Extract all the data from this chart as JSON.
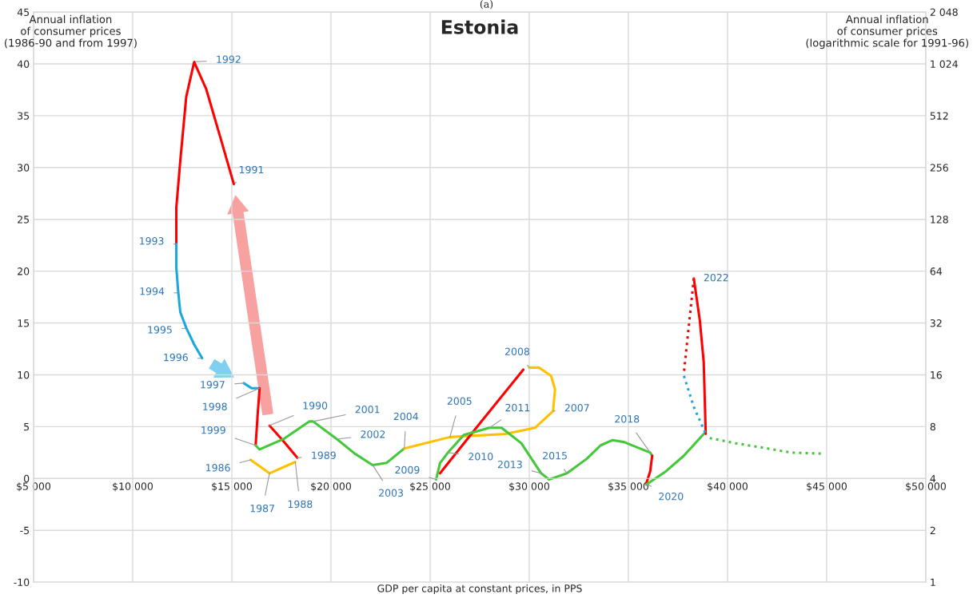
{
  "chart_data": {
    "type": "line",
    "title": "Estonia",
    "xlabel": "GDP per capita at constant prices, in PPS",
    "ylabel": "Annual inflation\nof consumer prices\n(1986-90 and from 1997)",
    "y2label": "Annual inflation\nof consumer prices\n(logarithmic scale for 1991-96)",
    "xlim": [
      5000,
      50000
    ],
    "xticks": [
      {
        "value": 5000,
        "label": "$5 000"
      },
      {
        "value": 10000,
        "label": "$10 000"
      },
      {
        "value": 15000,
        "label": "$15 000"
      },
      {
        "value": 20000,
        "label": "$20 000"
      },
      {
        "value": 25000,
        "label": "$25 000"
      },
      {
        "value": 30000,
        "label": "$30 000"
      },
      {
        "value": 35000,
        "label": "$35 000"
      },
      {
        "value": 40000,
        "label": "$40 000"
      },
      {
        "value": 45000,
        "label": "$45 000"
      },
      {
        "value": 50000,
        "label": "$50 000"
      }
    ],
    "ylim": [
      -10,
      45
    ],
    "yticks": [
      -10,
      -5,
      0,
      5,
      10,
      15,
      20,
      25,
      30,
      35,
      40,
      45
    ],
    "y2lim": [
      1,
      2048
    ],
    "y2ticks": [
      1,
      2,
      4,
      8,
      16,
      32,
      64,
      128,
      256,
      512,
      {
        "value": 1024,
        "label": "1 024"
      },
      {
        "value": 2048,
        "label": "2 048"
      }
    ],
    "log": "y2",
    "grid": true,
    "series": [
      {
        "color": "#ffc000",
        "x": [
          15950,
          16900,
          18200
        ],
        "values": [
          1.8,
          0.5,
          1.6
        ]
      },
      {
        "color": "#ff0000",
        "x": [
          18300,
          17600,
          16900
        ],
        "values": [
          2.0,
          3.6,
          5.1
        ]
      },
      {
        "color": "#1ca8dd",
        "x": [
          15600,
          16000,
          16400
        ],
        "values": [
          9.2,
          8.7,
          8.7
        ]
      },
      {
        "color": "#ff0000",
        "x": [
          16400,
          16300,
          16200
        ],
        "values": [
          8.7,
          6.1,
          3.2
        ]
      },
      {
        "color": "#44c73a",
        "x": [
          16200,
          16400,
          17600,
          18900,
          19100,
          20300,
          21200,
          22100,
          22800,
          23700
        ],
        "values": [
          3.2,
          2.8,
          3.8,
          5.5,
          5.5,
          3.8,
          2.4,
          1.3,
          1.5,
          2.9
        ]
      },
      {
        "color": "#ffc000",
        "x": [
          23700,
          26000,
          28800,
          30300,
          31200,
          31300,
          31100,
          30500,
          30000
        ],
        "values": [
          2.9,
          4.0,
          4.3,
          4.9,
          6.5,
          8.6,
          9.9,
          10.7,
          10.7
        ]
      },
      {
        "color": "#ff0000",
        "x": [
          29700,
          27500,
          25500
        ],
        "values": [
          10.5,
          5.3,
          0.5
        ]
      },
      {
        "color": "#44c73a",
        "x": [
          25300,
          25500,
          25900,
          26700,
          28000,
          28600,
          29600,
          30600,
          31000,
          31900,
          32900,
          33600,
          34200,
          34800,
          36100,
          36200
        ],
        "values": [
          -0.1,
          1.5,
          2.5,
          4.2,
          4.9,
          4.9,
          3.4,
          0.5,
          -0.1,
          0.5,
          1.9,
          3.2,
          3.7,
          3.5,
          2.5,
          2.2
        ]
      },
      {
        "color": "#ff0000",
        "x": [
          36200,
          36100,
          35900
        ],
        "values": [
          2.2,
          0.7,
          -0.5
        ]
      },
      {
        "color": "#44c73a",
        "x": [
          35900,
          36900,
          37800,
          38800
        ],
        "values": [
          -0.6,
          0.7,
          2.2,
          4.3
        ]
      },
      {
        "color": "#ff0000",
        "x": [
          38900,
          38800,
          38600,
          38300
        ],
        "values": [
          4.3,
          11.2,
          15.3,
          19.3
        ]
      },
      {
        "color": "#ff0000",
        "line_style": "dotted",
        "x": [
          38300,
          37800
        ],
        "values": [
          19.3,
          10.2
        ]
      },
      {
        "color": "#1ca8dd",
        "line_style": "dotted",
        "x": [
          37800,
          38300,
          38900
        ],
        "values": [
          9.9,
          6.9,
          4.3
        ]
      },
      {
        "color": "#44c73a",
        "line_style": "dotted",
        "x": [
          39100,
          40400,
          41700,
          43200,
          44700
        ],
        "values": [
          3.9,
          3.4,
          3.0,
          2.5,
          2.4
        ]
      },
      {
        "color": "#ff0000",
        "axis": "y2",
        "x": [
          15100,
          14400,
          13700,
          13100,
          12700,
          12400,
          12200,
          12200
        ],
        "values": [
          205,
          390,
          735,
          1050,
          660,
          280,
          150,
          92
        ]
      },
      {
        "color": "#1ca8dd",
        "axis": "y2",
        "x": [
          12200,
          12200,
          12300,
          12400,
          12700,
          13100,
          13500
        ],
        "values": [
          92,
          67,
          48,
          37,
          30,
          24,
          20
        ]
      }
    ],
    "annotations": [
      {
        "text": "1986",
        "x": 15950,
        "y": 1.8
      },
      {
        "text": "1987",
        "x": 16900,
        "y": 0.5
      },
      {
        "text": "1988",
        "x": 18200,
        "y": 1.6
      },
      {
        "text": "1989",
        "x": 18300,
        "y": 2.0
      },
      {
        "text": "1990",
        "x": 16900,
        "y": 5.1
      },
      {
        "text": "1991",
        "x": 15100,
        "y": 28.4
      },
      {
        "text": "1992",
        "x": 13100,
        "y": 40.2
      },
      {
        "text": "1993",
        "x": 12200,
        "y": 22.6
      },
      {
        "text": "1994",
        "x": 12300,
        "y": 17.9
      },
      {
        "text": "1995",
        "x": 12700,
        "y": 14.5
      },
      {
        "text": "1996",
        "x": 13500,
        "y": 11.6
      },
      {
        "text": "1997",
        "x": 15600,
        "y": 9.2
      },
      {
        "text": "1998",
        "x": 16400,
        "y": 8.7
      },
      {
        "text": "1999",
        "x": 16200,
        "y": 3.2
      },
      {
        "text": "2001",
        "x": 19100,
        "y": 5.5
      },
      {
        "text": "2002",
        "x": 20300,
        "y": 3.8
      },
      {
        "text": "2003",
        "x": 22100,
        "y": 1.3
      },
      {
        "text": "2004",
        "x": 23700,
        "y": 2.9
      },
      {
        "text": "2005",
        "x": 26000,
        "y": 4.0
      },
      {
        "text": "2007",
        "x": 31200,
        "y": 6.5
      },
      {
        "text": "2008",
        "x": 30000,
        "y": 10.7
      },
      {
        "text": "2009",
        "x": 25300,
        "y": -0.1
      },
      {
        "text": "2010",
        "x": 25900,
        "y": 2.5
      },
      {
        "text": "2011",
        "x": 28000,
        "y": 4.9
      },
      {
        "text": "2013",
        "x": 30600,
        "y": 0.5
      },
      {
        "text": "2015",
        "x": 31900,
        "y": 0.5
      },
      {
        "text": "2018",
        "x": 36100,
        "y": 2.5
      },
      {
        "text": "2020",
        "x": 35900,
        "y": -0.5
      },
      {
        "text": "2022",
        "x": 38300,
        "y": 19.3
      },
      "(a)"
    ]
  }
}
